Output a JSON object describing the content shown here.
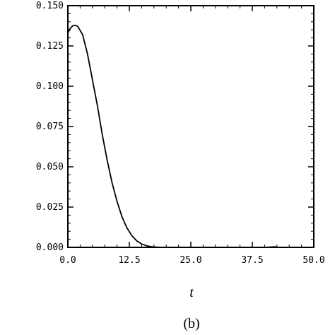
{
  "chart_data": {
    "type": "line",
    "title": "",
    "xlabel": "t",
    "ylabel": "",
    "caption": "(b)",
    "xlim": [
      0,
      50
    ],
    "ylim": [
      0,
      0.15
    ],
    "x_ticks": [
      "0.0",
      "12.5",
      "25.0",
      "37.5",
      "50.0"
    ],
    "y_ticks": [
      "0.000",
      "0.025",
      "0.050",
      "0.075",
      "0.100",
      "0.125",
      "0.150"
    ],
    "grid": false,
    "series": [
      {
        "x": [
          0,
          0.5,
          1,
          1.5,
          2,
          3,
          4,
          5,
          6,
          7,
          8,
          9,
          10,
          11,
          12,
          13,
          14,
          15,
          16,
          17,
          18,
          19,
          20,
          22,
          25,
          30,
          35,
          40,
          42,
          43,
          45,
          50
        ],
        "y": [
          0.133,
          0.136,
          0.1375,
          0.1378,
          0.1372,
          0.132,
          0.12,
          0.104,
          0.088,
          0.07,
          0.054,
          0.04,
          0.0285,
          0.019,
          0.0122,
          0.0073,
          0.0041,
          0.0021,
          0.001,
          0.0004,
          0.00015,
          5e-05,
          1e-05,
          0,
          0,
          0,
          0,
          0,
          0.0003,
          0,
          0,
          0
        ]
      }
    ]
  }
}
